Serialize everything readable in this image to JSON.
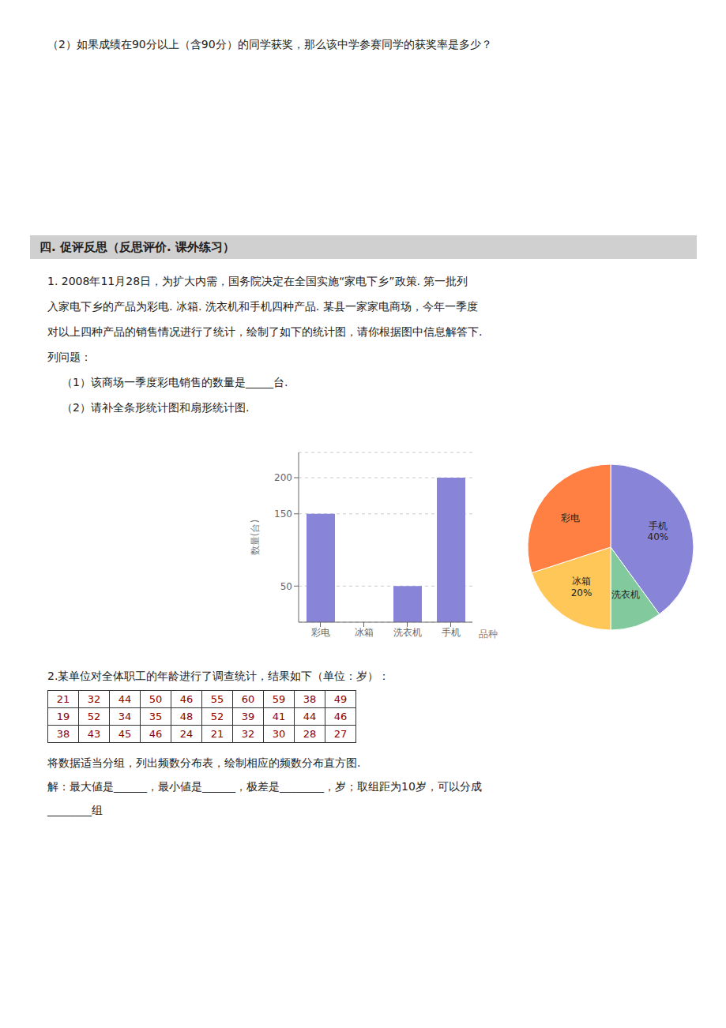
{
  "chart_data": [
    {
      "type": "bar",
      "annotations": [
        "（2）如果成绩在90分以上（含90分）的同学获奖，那么该中学参赛同学的获奖率是多少？",
        "四. 促评反思（反思评价. 课外练习）",
        "1. 2008年11月28日，为扩大内需，国务院决定在全国实施“家电下乡”政策. 第一批列",
        "入家电下乡的产品为彩电. 冰箱. 洗衣机和手机四种产品. 某县一家家电商场，今年一季度",
        "对以上四种产品的销售情况进行了统计，绘制了如下的统计图，请你根据图中信息解答下.",
        "列问题：",
        "（1）该商场一季度彩电销售的数量是_____台.",
        "（2）请补全条形统计图和扇形统计图."
      ],
      "categories": [
        "彩电",
        "冰箱",
        "洗衣机",
        "手机"
      ],
      "values": [
        150,
        0,
        50,
        200
      ],
      "x_label": "品种",
      "y_label": "数量(台)",
      "ylim": [
        0,
        235
      ],
      "yticks": [
        50,
        150,
        200
      ],
      "grid": true
    },
    {
      "type": "pie",
      "categories": [
        "手机",
        "洗衣机",
        "冰箱",
        "彩电"
      ],
      "values": [
        40,
        10,
        20,
        30
      ],
      "data_labels": true,
      "value_labels": [
        "40%",
        null,
        "20%",
        null
      ]
    },
    {
      "type": "table",
      "title": "2.某单位对全体职工的年龄进行了调查统计，结果如下（单位：岁）：",
      "cells": [
        [
          21,
          32,
          44,
          50,
          46,
          55,
          60,
          59,
          38,
          49
        ],
        [
          19,
          52,
          34,
          35,
          48,
          52,
          39,
          41,
          44,
          46
        ],
        [
          38,
          43,
          45,
          46,
          24,
          21,
          32,
          30,
          28,
          27
        ]
      ],
      "color": "#8b0000",
      "annotations": [
        "将数据适当分组，列出频数分布表，绘制相应的频数分布直方图.",
        "解：最大値是______，最小値是______，极差是________，岁；取组距为10岁，可以分成",
        "________组"
      ]
    }
  ]
}
